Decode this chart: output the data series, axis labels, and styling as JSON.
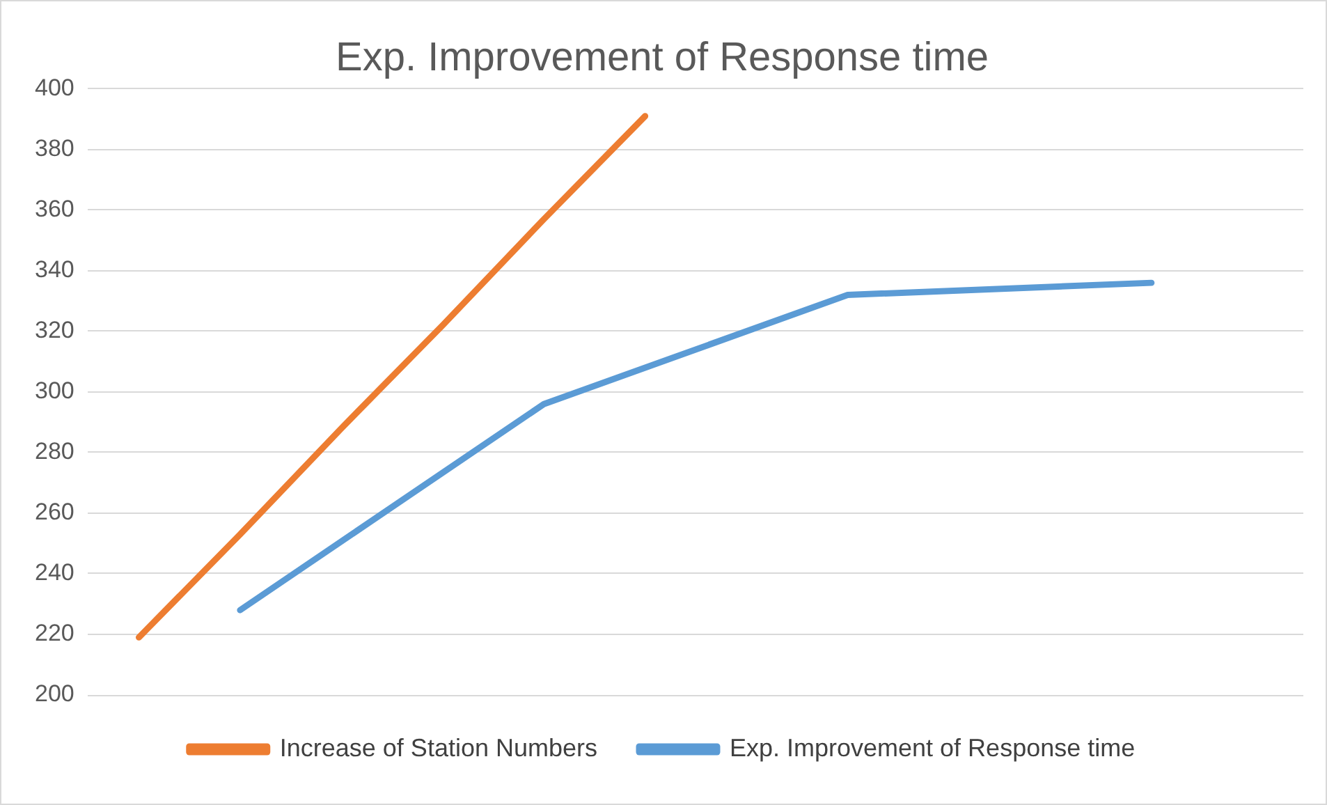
{
  "chart_data": {
    "type": "line",
    "title": "Exp. Improvement of Response time",
    "categories": [
      null,
      null,
      null,
      null,
      null,
      null,
      null,
      null,
      null,
      null,
      null,
      null
    ],
    "ylim": [
      200,
      400
    ],
    "yticks": [
      200,
      220,
      240,
      260,
      280,
      300,
      320,
      340,
      360,
      380,
      400
    ],
    "grid": "y",
    "legend": "bottom",
    "tick_labels": "y",
    "marker": "none",
    "series": [
      {
        "name": "Increase of Station Numbers",
        "color": "#ed7d31",
        "values": [
          219,
          253,
          288,
          322,
          357,
          391,
          null,
          null,
          null,
          null,
          null,
          null
        ]
      },
      {
        "name": "Exp. Improvement of Response time",
        "color": "#5b9bd5",
        "values": [
          null,
          228,
          null,
          null,
          296,
          null,
          null,
          332,
          null,
          null,
          336,
          null
        ]
      }
    ]
  }
}
